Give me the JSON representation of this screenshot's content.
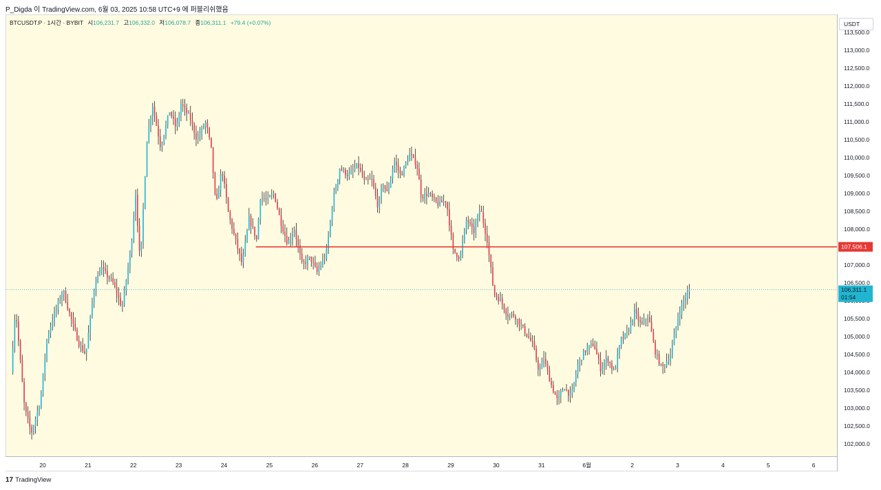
{
  "header": {
    "credit": "P_Digda 이 TradingView.com, 6월 03, 2025 10:58 UTC+9 에 퍼블리쉬했음"
  },
  "legend": {
    "symbol": "BTCUSDT.P · 1시간 · BYBIT",
    "open_label": "시",
    "open_value": "106,231.7",
    "high_label": "고",
    "high_value": "106,332.0",
    "low_label": "저",
    "low_value": "106,078.7",
    "close_label": "종",
    "close_value": "106,311.1",
    "change": "+79.4 (+0.07%)"
  },
  "price_axis": {
    "unit": "USDT",
    "current_price_label": "106,311.1",
    "countdown": "01:54",
    "level_label": "107,506.1"
  },
  "footer": {
    "logo_mark": "17",
    "logo_text": "TradingView"
  },
  "colors": {
    "up": "#26a69a",
    "up_body": "#29b6d6",
    "down": "#e5404f",
    "level_line": "#e53935",
    "current_price": "#22b5cf",
    "background": "#fffbe1"
  },
  "chart_data": {
    "type": "candlestick",
    "symbol": "BTCUSDT.P",
    "interval": "1h",
    "exchange": "BYBIT",
    "x_ticks": [
      "20",
      "21",
      "22",
      "23",
      "24",
      "25",
      "26",
      "27",
      "28",
      "29",
      "30",
      "31",
      "6월",
      "2",
      "3",
      "4",
      "5",
      "6"
    ],
    "y_ticks": [
      "102,000.0",
      "102,500.0",
      "103,000.0",
      "103,500.0",
      "104,000.0",
      "104,500.0",
      "105,000.0",
      "105,500.0",
      "106,000.0",
      "106,500.0",
      "107,000.0",
      "107,500.0",
      "108,000.0",
      "108,500.0",
      "109,000.0",
      "109,500.0",
      "110,000.0",
      "110,500.0",
      "111,000.0",
      "111,500.0",
      "112,000.0",
      "112,500.0",
      "113,000.0",
      "113,500.0"
    ],
    "ylim": [
      101700,
      113700
    ],
    "horizontal_levels": [
      {
        "price": 107506.1,
        "from_day": 24.7
      }
    ],
    "current_price": 106311.1,
    "anchors": [
      [
        19.3,
        104000
      ],
      [
        19.4,
        105800
      ],
      [
        19.6,
        103000
      ],
      [
        19.75,
        102300
      ],
      [
        19.95,
        103200
      ],
      [
        20.1,
        105000
      ],
      [
        20.25,
        105600
      ],
      [
        20.45,
        106300
      ],
      [
        20.6,
        105600
      ],
      [
        20.8,
        104800
      ],
      [
        20.95,
        104500
      ],
      [
        21.15,
        106500
      ],
      [
        21.3,
        106900
      ],
      [
        21.55,
        106500
      ],
      [
        21.75,
        105800
      ],
      [
        21.95,
        107500
      ],
      [
        22.05,
        109000
      ],
      [
        22.15,
        107000
      ],
      [
        22.3,
        110500
      ],
      [
        22.42,
        111500
      ],
      [
        22.6,
        110300
      ],
      [
        22.8,
        111300
      ],
      [
        22.95,
        110800
      ],
      [
        23.05,
        111500
      ],
      [
        23.25,
        111100
      ],
      [
        23.4,
        110500
      ],
      [
        23.6,
        111000
      ],
      [
        23.72,
        110200
      ],
      [
        23.82,
        108600
      ],
      [
        23.95,
        109700
      ],
      [
        24.1,
        108400
      ],
      [
        24.25,
        107700
      ],
      [
        24.4,
        107000
      ],
      [
        24.55,
        108300
      ],
      [
        24.72,
        107700
      ],
      [
        24.8,
        108900
      ],
      [
        24.95,
        108800
      ],
      [
        25.1,
        109000
      ],
      [
        25.25,
        108200
      ],
      [
        25.4,
        107600
      ],
      [
        25.55,
        108000
      ],
      [
        25.72,
        107000
      ],
      [
        25.9,
        107200
      ],
      [
        26.05,
        106800
      ],
      [
        26.25,
        107300
      ],
      [
        26.4,
        108800
      ],
      [
        26.55,
        109700
      ],
      [
        26.75,
        109500
      ],
      [
        26.95,
        109800
      ],
      [
        27.1,
        109300
      ],
      [
        27.25,
        109400
      ],
      [
        27.4,
        108600
      ],
      [
        27.5,
        109300
      ],
      [
        27.6,
        109000
      ],
      [
        27.75,
        109900
      ],
      [
        27.9,
        109500
      ],
      [
        28.1,
        110100
      ],
      [
        28.25,
        109800
      ],
      [
        28.35,
        108900
      ],
      [
        28.5,
        109000
      ],
      [
        28.7,
        108700
      ],
      [
        28.9,
        108800
      ],
      [
        29.05,
        107400
      ],
      [
        29.2,
        107200
      ],
      [
        29.35,
        108300
      ],
      [
        29.5,
        107900
      ],
      [
        29.65,
        108600
      ],
      [
        29.8,
        107700
      ],
      [
        29.95,
        106200
      ],
      [
        30.1,
        106000
      ],
      [
        30.25,
        105600
      ],
      [
        30.4,
        105600
      ],
      [
        30.6,
        105200
      ],
      [
        30.8,
        104800
      ],
      [
        30.95,
        104000
      ],
      [
        31.05,
        104400
      ],
      [
        31.2,
        103700
      ],
      [
        31.35,
        103200
      ],
      [
        31.5,
        103600
      ],
      [
        31.65,
        103300
      ],
      [
        31.8,
        104200
      ],
      [
        31.95,
        104600
      ],
      [
        32.15,
        104800
      ],
      [
        32.3,
        104100
      ],
      [
        32.45,
        104400
      ],
      [
        32.6,
        104000
      ],
      [
        32.75,
        104900
      ],
      [
        32.9,
        105100
      ],
      [
        33.05,
        105700
      ],
      [
        33.2,
        105300
      ],
      [
        33.35,
        105600
      ],
      [
        33.5,
        104600
      ],
      [
        33.65,
        104100
      ],
      [
        33.85,
        104500
      ],
      [
        34.0,
        105500
      ],
      [
        34.1,
        105900
      ],
      [
        34.25,
        106311
      ]
    ]
  }
}
